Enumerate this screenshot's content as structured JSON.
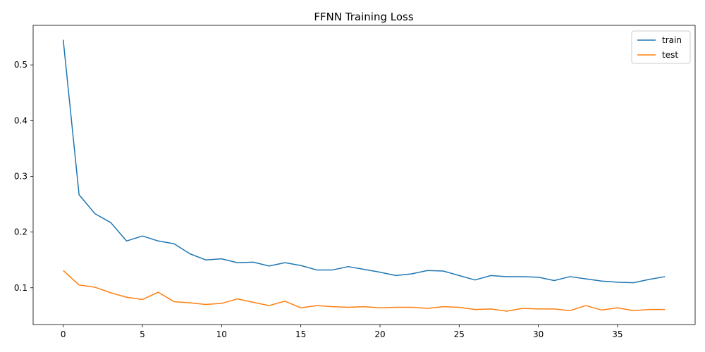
{
  "chart_data": {
    "type": "line",
    "title": "FFNN Training Loss",
    "xlabel": "",
    "ylabel": "",
    "xlim": [
      -1.9,
      39.9
    ],
    "ylim": [
      0.034,
      0.571
    ],
    "xticks": [
      0,
      5,
      10,
      15,
      20,
      25,
      30,
      35
    ],
    "yticks": [
      0.1,
      0.2,
      0.3,
      0.4,
      0.5
    ],
    "grid": false,
    "legend_position": "top-right",
    "x": [
      0,
      1,
      2,
      3,
      4,
      5,
      6,
      7,
      8,
      9,
      10,
      11,
      12,
      13,
      14,
      15,
      16,
      17,
      18,
      19,
      20,
      21,
      22,
      23,
      24,
      25,
      26,
      27,
      28,
      29,
      30,
      31,
      32,
      33,
      34,
      35,
      36,
      37,
      38
    ],
    "series": [
      {
        "name": "train",
        "color": "#1f77b4",
        "values": [
          0.545,
          0.267,
          0.233,
          0.217,
          0.184,
          0.193,
          0.184,
          0.179,
          0.161,
          0.15,
          0.152,
          0.145,
          0.146,
          0.139,
          0.145,
          0.14,
          0.132,
          0.132,
          0.138,
          0.133,
          0.128,
          0.122,
          0.125,
          0.131,
          0.13,
          0.122,
          0.114,
          0.122,
          0.12,
          0.12,
          0.119,
          0.113,
          0.12,
          0.116,
          0.112,
          0.11,
          0.109,
          0.115,
          0.12
        ]
      },
      {
        "name": "test",
        "color": "#ff7f0e",
        "values": [
          0.131,
          0.105,
          0.101,
          0.091,
          0.083,
          0.079,
          0.092,
          0.075,
          0.073,
          0.07,
          0.072,
          0.08,
          0.074,
          0.068,
          0.076,
          0.064,
          0.068,
          0.066,
          0.065,
          0.066,
          0.064,
          0.065,
          0.065,
          0.063,
          0.066,
          0.065,
          0.061,
          0.062,
          0.058,
          0.063,
          0.062,
          0.062,
          0.059,
          0.068,
          0.06,
          0.064,
          0.059,
          0.061,
          0.061
        ]
      }
    ]
  }
}
